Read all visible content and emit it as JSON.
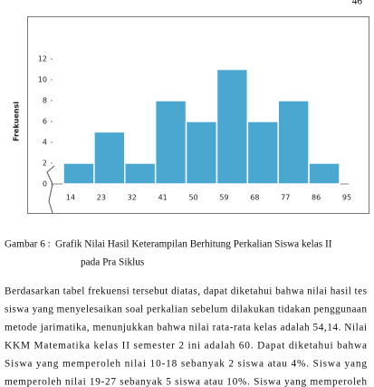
{
  "page_number": "46",
  "chart_data": {
    "type": "histogram",
    "ylabel": "Frekuensi",
    "bins": [
      14,
      23,
      32,
      41,
      50,
      59,
      68,
      77,
      86,
      95
    ],
    "values": [
      2,
      5,
      2,
      8,
      6,
      11,
      6,
      8,
      2
    ],
    "color": "#4aa7cf",
    "ylim": [
      0,
      12
    ],
    "yticks": [
      0,
      2,
      4,
      6,
      8,
      10,
      12
    ],
    "grid": false
  },
  "caption": {
    "label": "Gambar 6 :",
    "lines": [
      "Grafik Nilai Hasil Keterampilan Berhitung Perkalian Siswa kelas II",
      "pada Pra Siklus"
    ]
  },
  "paragraph": [
    "Berdasarkan tabel frekuensi tersebut diatas, dapat diketahui bahwa nilai hasil tes",
    "siswa yang menyelesaikan soal perkalian sebelum dilakukan tidakan penggunaan",
    "metode jarimatika, menunjukkan bahwa nilai rata-rata kelas adalah 54,14. Nilai",
    "KKM Matematika kelas II semester 2 ini adalah 60.  Dapat diketahui bahwa",
    "Siswa yang memperoleh nilai 10-18 sebanyak 2 siswa atau 4%. Siswa yang",
    "memperoleh nilai 19-27 sebanyak 5 siswa atau 10%. Siswa yang memperoleh"
  ]
}
